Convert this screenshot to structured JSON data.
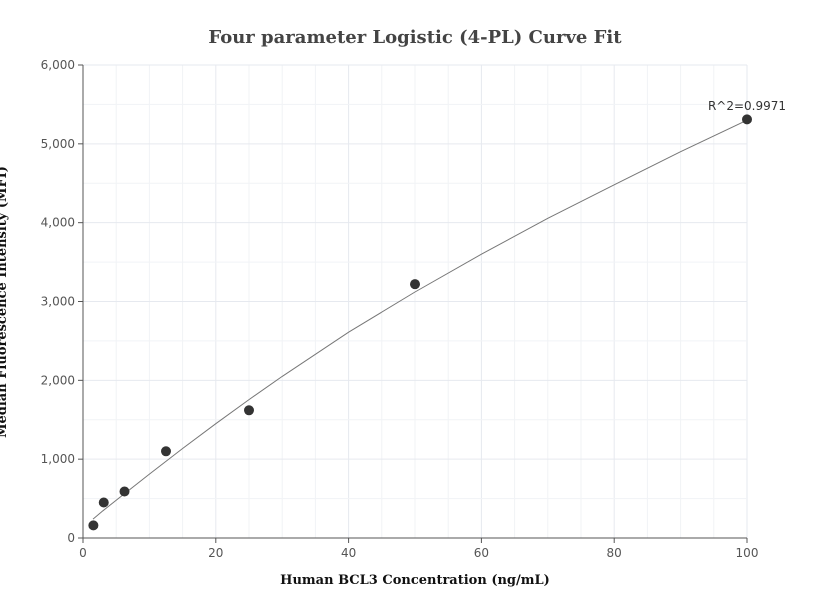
{
  "chart_data": {
    "type": "scatter",
    "title": "Four parameter Logistic (4-PL) Curve Fit",
    "xlabel": "Human BCL3 Concentration (ng/mL)",
    "ylabel": "Median Fluorescence Intensity (MFI)",
    "xlim": [
      0,
      100
    ],
    "ylim": [
      0,
      6000
    ],
    "x_ticks": [
      0,
      20,
      40,
      60,
      80,
      100
    ],
    "x_tick_labels": [
      "0",
      "20",
      "40",
      "60",
      "80",
      "100"
    ],
    "y_ticks": [
      0,
      1000,
      2000,
      3000,
      4000,
      5000,
      6000
    ],
    "y_tick_labels": [
      "0",
      "1,000",
      "2,000",
      "3,000",
      "4,000",
      "5,000",
      "6,000"
    ],
    "grid": true,
    "points": {
      "x": [
        1.5625,
        3.125,
        6.25,
        12.5,
        25,
        50,
        100
      ],
      "y": [
        160,
        450,
        590,
        1100,
        1620,
        3220,
        5310
      ]
    },
    "fit_curve": {
      "x": [
        1.5,
        3,
        6,
        10,
        15,
        20,
        25,
        30,
        40,
        50,
        60,
        70,
        80,
        90,
        100
      ],
      "y": [
        240,
        345,
        545,
        810,
        1135,
        1450,
        1755,
        2050,
        2610,
        3120,
        3600,
        4055,
        4480,
        4900,
        5300
      ]
    },
    "annotation": "R^2=0.9971",
    "colors": {
      "points": "#333333",
      "curve": "#777777",
      "grid": "#e6e9ef",
      "axis": "#555555"
    }
  }
}
